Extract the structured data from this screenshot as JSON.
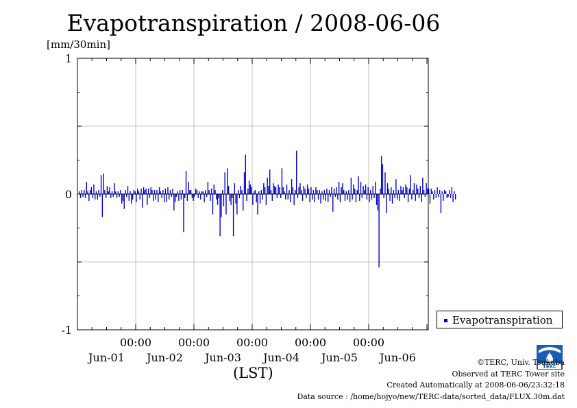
{
  "title": "Evapotranspiration / 2008-06-06",
  "unit_label": "[mm/30min]",
  "legend": {
    "label": "Evapotranspiration"
  },
  "credits": {
    "copyright": "©TERC, Univ. Tsukuba",
    "site": "Observed at TERC Tower site",
    "created": "Created Automatically at 2008-06-06/23:32:18",
    "source": "Data source : /home/hojyo/new/TERC-data/sorted_data/FLUX.30m.dat"
  },
  "logo_text": "TERC",
  "chart_data": {
    "type": "bar",
    "title": "Evapotranspiration / 2008-06-06",
    "ylabel": "[mm/30min]",
    "xlabel": "(LST)",
    "ylim": [
      -1,
      1
    ],
    "yticks": [
      -1,
      0,
      1
    ],
    "grid": true,
    "legend_position": "right",
    "series_color": "#0000cc",
    "time_tick_label": "00:00",
    "date_labels": [
      "Jun-01",
      "Jun-02",
      "Jun-03",
      "Jun-04",
      "Jun-05",
      "Jun-06"
    ],
    "series": [
      {
        "name": "Evapotranspiration",
        "interval_minutes": 30,
        "values": [
          0.02,
          -0.03,
          0.03,
          -0.02,
          0.03,
          -0.03,
          0.09,
          0.02,
          -0.05,
          0.03,
          0.05,
          -0.03,
          0.07,
          -0.04,
          0.02,
          -0.04,
          0.03,
          -0.02,
          0.14,
          -0.17,
          0.15,
          0.03,
          -0.03,
          0.06,
          0.02,
          0.05,
          -0.03,
          0.02,
          -0.02,
          0.08,
          0.02,
          -0.03,
          0.02,
          -0.02,
          0.03,
          -0.07,
          -0.05,
          -0.11,
          0.03,
          -0.02,
          0.06,
          -0.05,
          0.02,
          -0.07,
          -0.04,
          0.03,
          0.02,
          -0.06,
          0.04,
          0.02,
          -0.04,
          0.04,
          -0.1,
          0.05,
          0.03,
          0.04,
          -0.08,
          0.04,
          -0.03,
          0.05,
          0.03,
          -0.05,
          0.03,
          -0.04,
          0.03,
          -0.06,
          0.05,
          0.02,
          -0.03,
          0.03,
          -0.06,
          0.04,
          -0.06,
          0.05,
          -0.04,
          0.03,
          -0.02,
          0.04,
          -0.12,
          -0.06,
          -0.02,
          0.02,
          -0.05,
          0.03,
          -0.04,
          0.03,
          -0.28,
          -0.03,
          0.17,
          -0.05,
          0.09,
          0.03,
          0.03,
          -0.03,
          -0.05,
          -0.02,
          0.04,
          0.03,
          -0.03,
          0.02,
          -0.04,
          0.02,
          0.02,
          -0.06,
          0.03,
          -0.02,
          0.09,
          0.03,
          -0.05,
          0.04,
          -0.15,
          0.07,
          0.03,
          -0.04,
          -0.08,
          -0.03,
          -0.31,
          -0.17,
          0.03,
          -0.09,
          0.16,
          -0.15,
          0.19,
          0.06,
          -0.05,
          -0.08,
          -0.03,
          -0.31,
          0.08,
          -0.07,
          -0.15,
          0.03,
          -0.03,
          0.06,
          0.03,
          -0.12,
          0.16,
          0.29,
          -0.05,
          0.04,
          0.1,
          0.07,
          0.05,
          -0.08,
          0.02,
          0.03,
          -0.06,
          -0.15,
          0.02,
          -0.07,
          0.03,
          -0.04,
          0.08,
          0.05,
          -0.08,
          0.12,
          0.06,
          0.18,
          0.03,
          -0.05,
          0.08,
          0.06,
          0.05,
          -0.03,
          0.07,
          0.05,
          -0.03,
          0.19,
          0.05,
          0.02,
          -0.04,
          0.07,
          -0.04,
          0.03,
          -0.06,
          0.11,
          0.05,
          -0.08,
          0.03,
          0.32,
          -0.03,
          0.05,
          0.08,
          0.03,
          -0.05,
          0.06,
          0.04,
          -0.03,
          0.07,
          0.04,
          -0.06,
          0.05,
          -0.04,
          0.03,
          -0.06,
          0.05,
          0.03,
          -0.04,
          0.03,
          -0.07,
          0.02,
          -0.04,
          0.03,
          -0.05,
          0.04,
          -0.06,
          0.03,
          -0.02,
          0.05,
          -0.13,
          0.04,
          -0.02,
          0.05,
          -0.04,
          0.09,
          -0.06,
          0.05,
          0.08,
          0.03,
          -0.05,
          0.02,
          -0.04,
          0.03,
          -0.06,
          0.12,
          -0.04,
          0.07,
          0.04,
          -0.06,
          0.03,
          0.13,
          -0.05,
          0.09,
          -0.03,
          0.06,
          0.03,
          0.07,
          -0.04,
          0.05,
          -0.06,
          0.03,
          -0.04,
          0.06,
          -0.03,
          0.09,
          -0.08,
          -0.12,
          -0.54,
          0.04,
          0.28,
          0.22,
          -0.03,
          0.16,
          -0.14,
          0.08,
          0.04,
          -0.05,
          0.05,
          -0.07,
          0.03,
          -0.03,
          0.11,
          -0.04,
          0.03,
          -0.05,
          0.06,
          0.03,
          0.05,
          -0.03,
          0.07,
          0.05,
          -0.06,
          0.04,
          0.14,
          -0.04,
          0.03,
          0.08,
          -0.05,
          0.07,
          0.04,
          -0.03,
          0.06,
          -0.06,
          0.12,
          0.03,
          -0.02,
          0.08,
          0.04,
          0.04,
          -0.07,
          0.04,
          0.02,
          -0.04,
          0.03,
          -0.03,
          0.05,
          -0.02,
          0.03,
          -0.14,
          0.02,
          -0.05,
          0.03,
          0.02,
          -0.03,
          -0.02,
          0.03,
          -0.03,
          0.05,
          -0.06,
          0.02,
          -0.04
        ]
      }
    ]
  }
}
